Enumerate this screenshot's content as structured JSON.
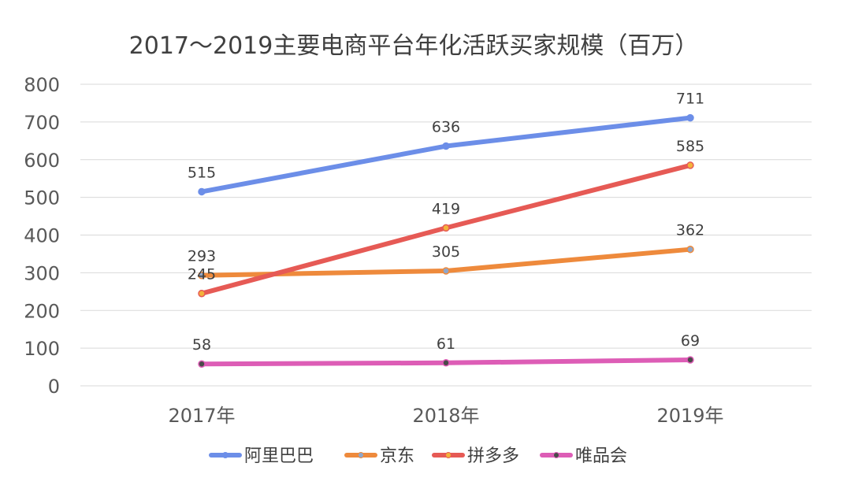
{
  "chart_data": {
    "type": "line",
    "title": "2017～2019主要电商平台年化活跃买家规模（百万）",
    "categories": [
      "2017年",
      "2018年",
      "2019年"
    ],
    "ylim": [
      0,
      800
    ],
    "yticks": [
      0,
      100,
      200,
      300,
      400,
      500,
      600,
      700,
      800
    ],
    "grid": true,
    "legend_position": "bottom",
    "series": [
      {
        "name": "阿里巴巴",
        "values": [
          515,
          636,
          711
        ],
        "color": "#6C8EE8",
        "marker_color": "#6C8EE8"
      },
      {
        "name": "京东",
        "values": [
          293,
          305,
          362
        ],
        "color": "#EE8A3C",
        "marker_color": "#8FA6C9"
      },
      {
        "name": "拼多多",
        "values": [
          245,
          419,
          585
        ],
        "color": "#E65A55",
        "marker_color": "#F3B23A"
      },
      {
        "name": "唯品会",
        "values": [
          58,
          61,
          69
        ],
        "color": "#DD5DB6",
        "marker_color": "#4A4A4A"
      }
    ]
  }
}
